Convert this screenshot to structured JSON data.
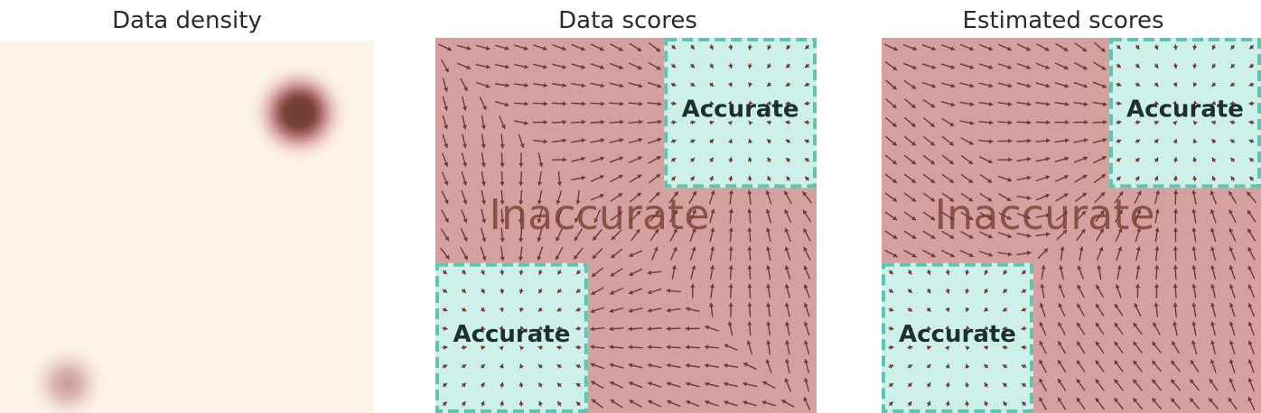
{
  "panels": [
    {
      "title": "Data density"
    },
    {
      "title": "Data scores"
    },
    {
      "title": "Estimated scores"
    }
  ],
  "labels": {
    "accurate": "Accurate",
    "inaccurate": "Inaccurate"
  },
  "density": {
    "modes": [
      {
        "center": [
          0.8,
          0.8
        ],
        "weight": 0.8
      },
      {
        "center": [
          0.2,
          0.2
        ],
        "weight": 0.2
      }
    ]
  },
  "colors": {
    "density_background": "#fdf3e8",
    "density_peak": "#6e3a30",
    "inaccurate_region": "#d4a0a0",
    "accurate_region": "#cdf1ea",
    "accurate_border": "#5ec6b0",
    "arrow": "#6e3a30"
  }
}
